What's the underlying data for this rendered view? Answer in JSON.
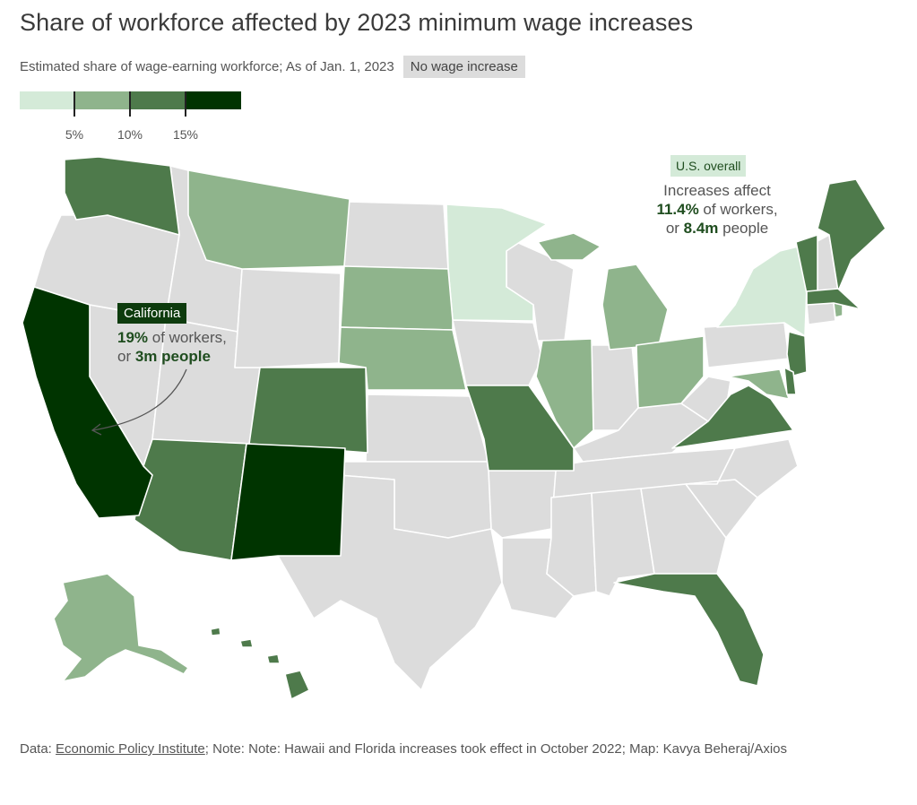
{
  "title": "Share of workforce affected by 2023 minimum wage increases",
  "subtitle": "Estimated share of wage-earning workforce; As of Jan. 1, 2023",
  "no_increase_label": "No wage increase",
  "legend": {
    "ticks": [
      "5%",
      "10%",
      "15%"
    ],
    "colors": [
      "#d4ead8",
      "#8fb48c",
      "#4e7a4b",
      "#003400"
    ]
  },
  "colors": {
    "none": "#dcdcdc",
    "bin1": "#d4ead8",
    "bin2": "#8fb48c",
    "bin3": "#4e7a4b",
    "bin4": "#003400"
  },
  "states": {
    "bin4": [
      "California",
      "New Mexico"
    ],
    "bin3": [
      "Washington",
      "Arizona",
      "Colorado",
      "Missouri",
      "Virginia",
      "Florida",
      "Maine",
      "Vermont",
      "Massachusetts",
      "New Jersey",
      "Delaware",
      "Hawaii"
    ],
    "bin2": [
      "Montana",
      "South Dakota",
      "Nebraska",
      "Illinois",
      "Michigan",
      "Ohio",
      "Maryland",
      "Alaska",
      "Rhode Island"
    ],
    "bin1": [
      "Minnesota",
      "New York"
    ]
  },
  "california": {
    "chip": "California",
    "line1_value": "19%",
    "line1_rest": " of workers,",
    "line2_prefix": "or ",
    "line2_value": "3m people"
  },
  "us_overall": {
    "chip": "U.S. overall",
    "line1": "Increases affect",
    "line2_value": "11.4%",
    "line2_rest": " of workers,",
    "line3_prefix": "or ",
    "line3_value": "8.4m",
    "line3_rest": " people"
  },
  "footer": {
    "prefix": "Data: ",
    "source": "Economic Policy Institute",
    "note": "; Note: Note: Hawaii and Florida increases took effect in October 2022; Map: Kavya Beheraj/Axios"
  }
}
